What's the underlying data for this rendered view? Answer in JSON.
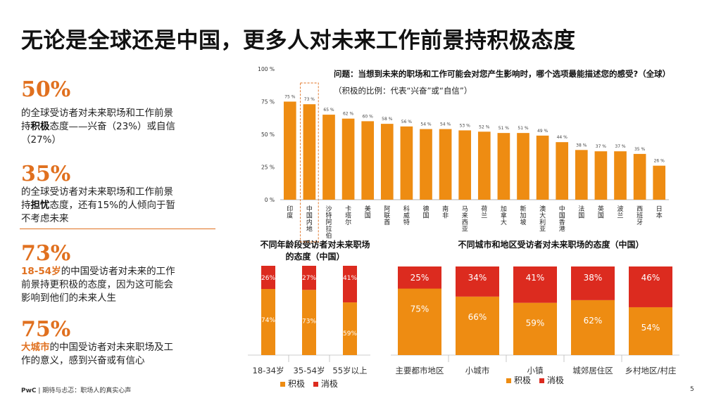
{
  "title": "无论是全球还是中国，更多人对未来工作前景持积极态度",
  "stats": [
    {
      "big": "50%",
      "line1": "的全球受访者对未来职场和工作前景",
      "line2a": "持",
      "line2b": "积极",
      "line2c": "态度——兴奋（23%）或自信",
      "line3": "（27%）"
    },
    {
      "big": "35%",
      "line1": "的全球受访者对未来职场和工作前景",
      "line2a": "持",
      "line2b": "担忧",
      "line2c": "态度，还有15%的人倾向于暂",
      "line3": "不考虑未来"
    },
    {
      "big": "73%",
      "line1a": "18-54岁",
      "line1b": "的中国受访者对未来的工作",
      "line2": "前景持更积极的态度，因为这可能会",
      "line3": "影响到他们的未来人生"
    },
    {
      "big": "75%",
      "line1a": "大城市",
      "line1b": "的中国受访者对未来职场及工",
      "line2": "作的意义，感到兴奋或有信心"
    }
  ],
  "footer": {
    "brand": "PwC",
    "text": " | 期待与忐忑：职场人的真实心声",
    "page": "5"
  },
  "colors": {
    "orange": "#ee8c12",
    "red": "#dc2b1f",
    "accent": "#e0701f"
  },
  "chart_data": [
    {
      "type": "bar",
      "title": "问题：当想到未来的职场和工作可能会对您产生影响时，哪个选项最能描述您的感受?（全球）",
      "subtitle": "（积极的比例：代表“兴奋”或“自信”）",
      "yticks": [
        "100 %",
        "75 %",
        "50 %",
        "25 %",
        "0 %"
      ],
      "ylim": [
        0,
        100
      ],
      "highlight_index": 1,
      "categories": [
        "印度",
        "中国内地",
        "沙特阿拉伯",
        "卡塔尔",
        "美国",
        "阿联酋",
        "科威特",
        "德国",
        "南非",
        "马来西亚",
        "荷兰",
        "加拿大",
        "新加坡",
        "澳大利亚",
        "中国香港",
        "法国",
        "英国",
        "波兰",
        "西班牙",
        "日本"
      ],
      "values": [
        75,
        73,
        65,
        62,
        60,
        58,
        56,
        54,
        54,
        53,
        52,
        51,
        51,
        49,
        44,
        38,
        37,
        37,
        35,
        26
      ],
      "labels": [
        "75 %",
        "73 %",
        "65 %",
        "62 %",
        "60 %",
        "58 %",
        "56 %",
        "54 %",
        "54 %",
        "53 %",
        "52 %",
        "51 %",
        "51 %",
        "49 %",
        "44 %",
        "38 %",
        "37 %",
        "37 %",
        "35 %",
        "26 %"
      ]
    },
    {
      "type": "bar",
      "stacked": true,
      "title_line1": "不同年龄段受访者对未来职场",
      "title_line2": "的态度（中国）",
      "categories": [
        "18-34岁",
        "35-54岁",
        "55岁以上"
      ],
      "series": [
        {
          "name": "积极",
          "values": [
            74,
            73,
            59
          ],
          "labels": [
            "74%",
            "73%",
            "59%"
          ]
        },
        {
          "name": "消极",
          "values": [
            26,
            27,
            41
          ],
          "labels": [
            "26%",
            "27%",
            "41%"
          ]
        }
      ],
      "legend": [
        "积极",
        "消极"
      ],
      "legend_position": "bottom"
    },
    {
      "type": "bar",
      "stacked": true,
      "title": "不同城市和地区受访者对未来职场的态度（中国）",
      "categories": [
        "主要都市地区",
        "小城市",
        "小镇",
        "城郊居住区",
        "乡村地区/村庄"
      ],
      "series": [
        {
          "name": "积极",
          "values": [
            75,
            66,
            59,
            62,
            54
          ],
          "labels": [
            "75%",
            "66%",
            "59%",
            "62%",
            "54%"
          ]
        },
        {
          "name": "消极",
          "values": [
            25,
            34,
            41,
            38,
            46
          ],
          "labels": [
            "25%",
            "34%",
            "41%",
            "38%",
            "46%"
          ]
        }
      ],
      "legend": [
        "积极",
        "消极"
      ],
      "legend_position": "bottom"
    }
  ]
}
